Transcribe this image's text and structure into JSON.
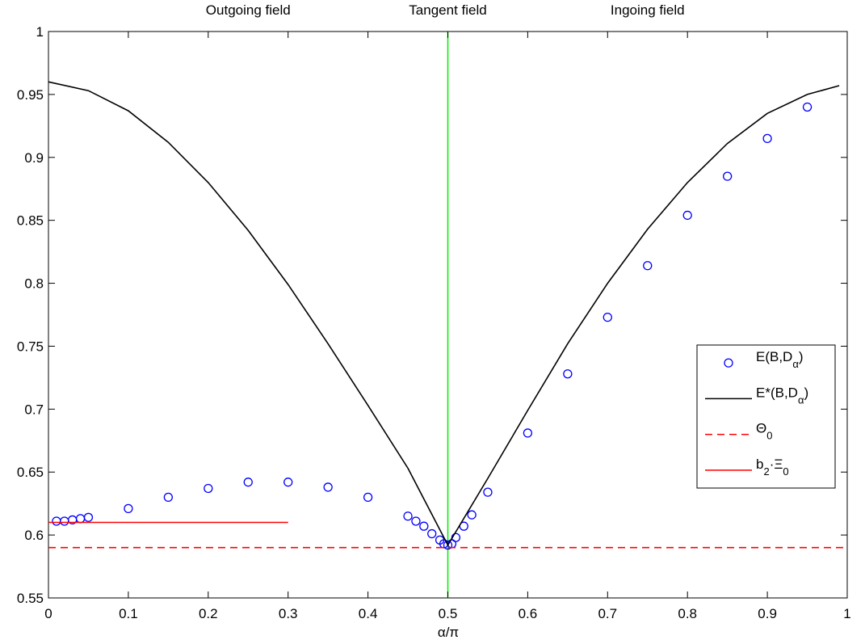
{
  "chart_data": {
    "type": "scatter",
    "title": "",
    "xlabel": "α/π",
    "ylabel": "",
    "xlim": [
      0,
      1
    ],
    "ylim": [
      0.55,
      1
    ],
    "xticks": [
      0,
      0.1,
      0.2,
      0.3,
      0.4,
      0.5,
      0.6,
      0.7,
      0.8,
      0.9,
      1
    ],
    "xtick_labels": [
      "0",
      "0.1",
      "0.2",
      "0.3",
      "0.4",
      "0.5",
      "0.6",
      "0.7",
      "0.8",
      "0.9",
      "1"
    ],
    "yticks": [
      0.55,
      0.6,
      0.65,
      0.7,
      0.75,
      0.8,
      0.85,
      0.9,
      0.95,
      1
    ],
    "ytick_labels": [
      "0.55",
      "0.6",
      "0.65",
      "0.7",
      "0.75",
      "0.8",
      "0.85",
      "0.9",
      "0.95",
      "1"
    ],
    "grid": false,
    "legend_position": "right",
    "annotations": [
      {
        "text": "Outgoing field",
        "x": 0.25
      },
      {
        "text": "Tangent field",
        "x": 0.5
      },
      {
        "text": "Ingoing field",
        "x": 0.75
      }
    ],
    "series": [
      {
        "legend": {
          "main": "E(B,D",
          "sub": "α",
          "tail": ")"
        },
        "style": "markers",
        "color": "#0000ff",
        "x": [
          0.01,
          0.02,
          0.03,
          0.04,
          0.05,
          0.1,
          0.15,
          0.2,
          0.25,
          0.3,
          0.35,
          0.4,
          0.45,
          0.46,
          0.47,
          0.48,
          0.49,
          0.495,
          0.5,
          0.505,
          0.51,
          0.52,
          0.53,
          0.55,
          0.6,
          0.65,
          0.7,
          0.75,
          0.8,
          0.85,
          0.9,
          0.95
        ],
        "y": [
          0.611,
          0.611,
          0.612,
          0.613,
          0.614,
          0.621,
          0.63,
          0.637,
          0.642,
          0.642,
          0.638,
          0.63,
          0.615,
          0.611,
          0.607,
          0.601,
          0.596,
          0.593,
          0.592,
          0.593,
          0.598,
          0.607,
          0.616,
          0.634,
          0.681,
          0.728,
          0.773,
          0.814,
          0.854,
          0.885,
          0.915,
          0.94
        ]
      },
      {
        "legend": {
          "main": "E*(B,D",
          "sub": "α",
          "tail": ")"
        },
        "style": "solid",
        "color": "#000000",
        "x": [
          0,
          0.05,
          0.1,
          0.15,
          0.2,
          0.25,
          0.3,
          0.35,
          0.4,
          0.45,
          0.5,
          0.55,
          0.6,
          0.65,
          0.7,
          0.75,
          0.8,
          0.85,
          0.9,
          0.95,
          0.99
        ],
        "y": [
          0.96,
          0.953,
          0.937,
          0.912,
          0.88,
          0.842,
          0.799,
          0.752,
          0.703,
          0.653,
          0.592,
          0.645,
          0.699,
          0.752,
          0.8,
          0.843,
          0.88,
          0.911,
          0.935,
          0.95,
          0.957
        ]
      },
      {
        "legend": {
          "main": "Θ",
          "sub": "0",
          "tail": ""
        },
        "style": "dashed",
        "color": "#ff0000",
        "x": [
          0,
          1
        ],
        "y": [
          0.59,
          0.59
        ]
      },
      {
        "legend": {
          "main": "b",
          "sub": "2",
          "tail": "·Ξ",
          "sub2": "0"
        },
        "style": "solid",
        "color": "#ff0000",
        "x": [
          0,
          0.3
        ],
        "y": [
          0.61,
          0.61
        ]
      }
    ],
    "vertical_lines": [
      {
        "x": 0.5,
        "color": "#00ee00"
      }
    ]
  }
}
